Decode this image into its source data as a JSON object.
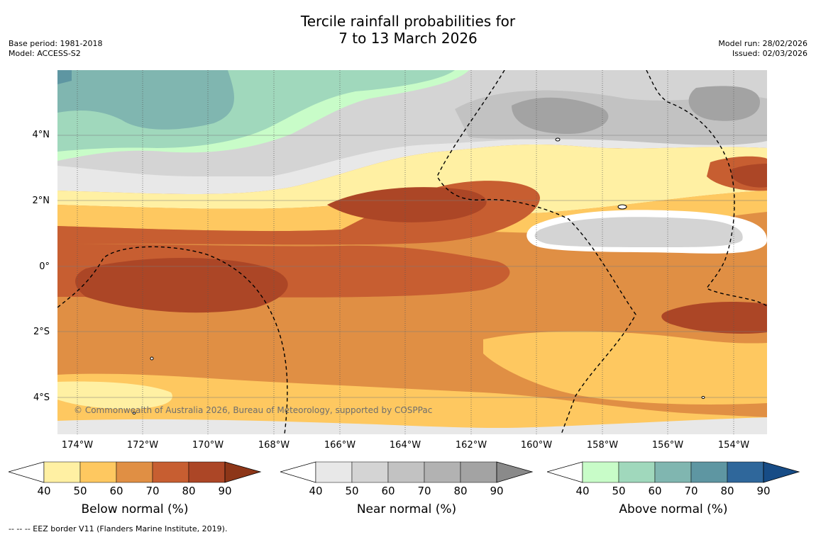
{
  "title_line1": "Tercile rainfall probabilities for",
  "title_line2": "7 to 13 March 2026",
  "base_period": "Base period: 1981-2018",
  "model": "Model: ACCESS-S2",
  "model_run": "Model run: 28/02/2026",
  "issued": "Issued: 02/03/2026",
  "lat_labels": [
    "4°N",
    "2°N",
    "0°",
    "2°S",
    "4°S"
  ],
  "lon_labels": [
    "174°W",
    "172°W",
    "170°W",
    "168°W",
    "166°W",
    "164°W",
    "162°W",
    "160°W",
    "158°W",
    "156°W",
    "154°W"
  ],
  "watermark": "© Commonwealth of Australia 2026, Bureau of Meteorology, supported by COSPPac",
  "legends": [
    {
      "title": "Below normal (%)",
      "ticks": [
        "40",
        "50",
        "60",
        "70",
        "80",
        "90"
      ],
      "colors": [
        "#ffffff",
        "#fff0a3",
        "#fec860",
        "#e08f44",
        "#c75e31",
        "#ac4626",
        "#8d3618"
      ]
    },
    {
      "title": "Near normal (%)",
      "ticks": [
        "40",
        "50",
        "60",
        "70",
        "80",
        "90"
      ],
      "colors": [
        "#ffffff",
        "#e8e8e8",
        "#d4d4d4",
        "#c2c2c2",
        "#b2b2b2",
        "#a3a3a3",
        "#8a8a8a"
      ]
    },
    {
      "title": "Above normal (%)",
      "ticks": [
        "40",
        "50",
        "60",
        "70",
        "80",
        "90"
      ],
      "colors": [
        "#ffffff",
        "#c8fcc8",
        "#a0d8bc",
        "#80b6b0",
        "#5e96a2",
        "#2f679b",
        "#174c86"
      ]
    }
  ],
  "footnote": "--  --  -- EEZ border V11 (Flanders Marine Institute, 2019)."
}
